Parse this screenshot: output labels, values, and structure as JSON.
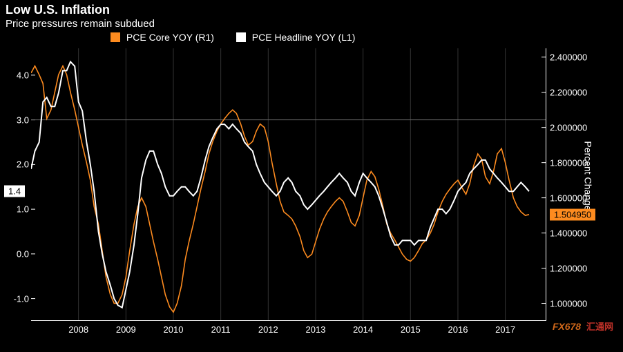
{
  "title": "Low U.S. Inflation",
  "subtitle": "Price pressures remain subdued",
  "legend": {
    "series1": {
      "label": "PCE Core YOY (R1)",
      "color": "#fd8b1f"
    },
    "series2": {
      "label": "PCE Headline YOY (L1)",
      "color": "#ffffff"
    }
  },
  "watermark": {
    "main": "FX678",
    "sub": "汇通网"
  },
  "plot": {
    "background": "#000000",
    "grid_color": "#333333",
    "ref_line_color": "#666666",
    "ref_line_at_left": 3.0,
    "x": {
      "min": 2007.0,
      "max": 2017.85,
      "ticks": [
        2008,
        2009,
        2010,
        2011,
        2012,
        2013,
        2014,
        2015,
        2016,
        2017
      ]
    },
    "left_axis": {
      "min": -1.5,
      "max": 4.6,
      "ticks": [
        -1.0,
        0.0,
        1.0,
        2.0,
        3.0,
        4.0
      ],
      "tick_labels": [
        "-1.0",
        "0.0",
        "1.0",
        "2.0",
        "3.0",
        "4.0"
      ],
      "badge_value": 1.4,
      "badge_label": "1.4"
    },
    "right_axis": {
      "label": "Percent Change",
      "min": 0.9,
      "max": 2.45,
      "ticks": [
        1.0,
        1.2,
        1.4,
        1.6,
        1.8,
        2.0,
        2.2,
        2.4
      ],
      "tick_labels": [
        "1.000000",
        "1.200000",
        "1.400000",
        "1.600000",
        "1.800000",
        "2.000000",
        "2.200000",
        "2.400000"
      ],
      "badge_value": 1.50495,
      "badge_label": "1.504950"
    },
    "series_headline": {
      "axis": "left",
      "color": "#ffffff",
      "line_width": 2.0,
      "data": [
        [
          2007.0,
          1.9
        ],
        [
          2007.08,
          2.3
        ],
        [
          2007.17,
          2.5
        ],
        [
          2007.25,
          3.4
        ],
        [
          2007.33,
          3.5
        ],
        [
          2007.42,
          3.3
        ],
        [
          2007.5,
          3.3
        ],
        [
          2007.58,
          3.6
        ],
        [
          2007.67,
          4.1
        ],
        [
          2007.75,
          4.1
        ],
        [
          2007.83,
          4.3
        ],
        [
          2007.92,
          4.2
        ],
        [
          2008.0,
          3.4
        ],
        [
          2008.08,
          3.2
        ],
        [
          2008.17,
          2.5
        ],
        [
          2008.25,
          2.0
        ],
        [
          2008.33,
          1.4
        ],
        [
          2008.42,
          0.5
        ],
        [
          2008.5,
          0.0
        ],
        [
          2008.58,
          -0.4
        ],
        [
          2008.67,
          -0.7
        ],
        [
          2008.75,
          -1.0
        ],
        [
          2008.83,
          -1.15
        ],
        [
          2008.92,
          -1.2
        ],
        [
          2009.0,
          -0.8
        ],
        [
          2009.08,
          -0.4
        ],
        [
          2009.17,
          0.2
        ],
        [
          2009.25,
          0.9
        ],
        [
          2009.33,
          1.7
        ],
        [
          2009.42,
          2.1
        ],
        [
          2009.5,
          2.3
        ],
        [
          2009.58,
          2.3
        ],
        [
          2009.67,
          2.0
        ],
        [
          2009.75,
          1.8
        ],
        [
          2009.83,
          1.5
        ],
        [
          2009.92,
          1.3
        ],
        [
          2010.0,
          1.3
        ],
        [
          2010.08,
          1.4
        ],
        [
          2010.17,
          1.5
        ],
        [
          2010.25,
          1.5
        ],
        [
          2010.33,
          1.4
        ],
        [
          2010.42,
          1.3
        ],
        [
          2010.5,
          1.4
        ],
        [
          2010.58,
          1.7
        ],
        [
          2010.67,
          2.1
        ],
        [
          2010.75,
          2.4
        ],
        [
          2010.83,
          2.6
        ],
        [
          2010.92,
          2.8
        ],
        [
          2011.0,
          2.9
        ],
        [
          2011.08,
          2.9
        ],
        [
          2011.17,
          2.8
        ],
        [
          2011.25,
          2.9
        ],
        [
          2011.33,
          2.8
        ],
        [
          2011.42,
          2.7
        ],
        [
          2011.5,
          2.5
        ],
        [
          2011.58,
          2.4
        ],
        [
          2011.67,
          2.3
        ],
        [
          2011.75,
          2.0
        ],
        [
          2011.83,
          1.8
        ],
        [
          2011.92,
          1.6
        ],
        [
          2012.0,
          1.5
        ],
        [
          2012.08,
          1.4
        ],
        [
          2012.17,
          1.3
        ],
        [
          2012.25,
          1.4
        ],
        [
          2012.33,
          1.6
        ],
        [
          2012.42,
          1.7
        ],
        [
          2012.5,
          1.6
        ],
        [
          2012.58,
          1.4
        ],
        [
          2012.67,
          1.3
        ],
        [
          2012.75,
          1.1
        ],
        [
          2012.83,
          1.0
        ],
        [
          2012.92,
          1.1
        ],
        [
          2013.0,
          1.2
        ],
        [
          2013.08,
          1.3
        ],
        [
          2013.17,
          1.4
        ],
        [
          2013.25,
          1.5
        ],
        [
          2013.33,
          1.6
        ],
        [
          2013.42,
          1.7
        ],
        [
          2013.5,
          1.8
        ],
        [
          2013.58,
          1.7
        ],
        [
          2013.67,
          1.6
        ],
        [
          2013.75,
          1.4
        ],
        [
          2013.83,
          1.3
        ],
        [
          2013.92,
          1.6
        ],
        [
          2014.0,
          1.8
        ],
        [
          2014.08,
          1.7
        ],
        [
          2014.17,
          1.6
        ],
        [
          2014.25,
          1.5
        ],
        [
          2014.33,
          1.3
        ],
        [
          2014.42,
          1.0
        ],
        [
          2014.5,
          0.7
        ],
        [
          2014.58,
          0.4
        ],
        [
          2014.67,
          0.2
        ],
        [
          2014.75,
          0.2
        ],
        [
          2014.83,
          0.3
        ],
        [
          2014.92,
          0.3
        ],
        [
          2015.0,
          0.3
        ],
        [
          2015.08,
          0.2
        ],
        [
          2015.17,
          0.3
        ],
        [
          2015.25,
          0.3
        ],
        [
          2015.33,
          0.3
        ],
        [
          2015.42,
          0.6
        ],
        [
          2015.5,
          0.8
        ],
        [
          2015.58,
          1.0
        ],
        [
          2015.67,
          1.0
        ],
        [
          2015.75,
          0.9
        ],
        [
          2015.83,
          1.0
        ],
        [
          2015.92,
          1.2
        ],
        [
          2016.0,
          1.4
        ],
        [
          2016.08,
          1.5
        ],
        [
          2016.17,
          1.6
        ],
        [
          2016.25,
          1.8
        ],
        [
          2016.33,
          1.9
        ],
        [
          2016.42,
          2.0
        ],
        [
          2016.5,
          2.1
        ],
        [
          2016.58,
          2.1
        ],
        [
          2016.67,
          1.9
        ],
        [
          2016.75,
          1.8
        ],
        [
          2016.83,
          1.7
        ],
        [
          2016.92,
          1.6
        ],
        [
          2017.0,
          1.5
        ],
        [
          2017.08,
          1.4
        ],
        [
          2017.17,
          1.4
        ],
        [
          2017.25,
          1.5
        ],
        [
          2017.33,
          1.6
        ],
        [
          2017.42,
          1.5
        ],
        [
          2017.5,
          1.4
        ]
      ]
    },
    "series_core": {
      "axis": "right",
      "color": "#fd8b1f",
      "line_width": 1.6,
      "data": [
        [
          2007.0,
          2.31
        ],
        [
          2007.08,
          2.35
        ],
        [
          2007.17,
          2.3
        ],
        [
          2007.25,
          2.25
        ],
        [
          2007.33,
          2.05
        ],
        [
          2007.42,
          2.1
        ],
        [
          2007.5,
          2.2
        ],
        [
          2007.58,
          2.3
        ],
        [
          2007.67,
          2.35
        ],
        [
          2007.75,
          2.3
        ],
        [
          2007.83,
          2.2
        ],
        [
          2007.92,
          2.1
        ],
        [
          2008.0,
          2.0
        ],
        [
          2008.08,
          1.9
        ],
        [
          2008.17,
          1.8
        ],
        [
          2008.25,
          1.7
        ],
        [
          2008.33,
          1.55
        ],
        [
          2008.42,
          1.45
        ],
        [
          2008.5,
          1.3
        ],
        [
          2008.58,
          1.15
        ],
        [
          2008.67,
          1.05
        ],
        [
          2008.75,
          1.0
        ],
        [
          2008.83,
          1.0
        ],
        [
          2008.92,
          1.05
        ],
        [
          2009.0,
          1.15
        ],
        [
          2009.08,
          1.3
        ],
        [
          2009.17,
          1.45
        ],
        [
          2009.25,
          1.55
        ],
        [
          2009.33,
          1.6
        ],
        [
          2009.42,
          1.55
        ],
        [
          2009.5,
          1.45
        ],
        [
          2009.58,
          1.35
        ],
        [
          2009.67,
          1.25
        ],
        [
          2009.75,
          1.15
        ],
        [
          2009.83,
          1.05
        ],
        [
          2009.92,
          0.98
        ],
        [
          2010.0,
          0.95
        ],
        [
          2010.08,
          1.0
        ],
        [
          2010.17,
          1.1
        ],
        [
          2010.25,
          1.25
        ],
        [
          2010.33,
          1.35
        ],
        [
          2010.42,
          1.45
        ],
        [
          2010.5,
          1.55
        ],
        [
          2010.58,
          1.65
        ],
        [
          2010.67,
          1.75
        ],
        [
          2010.75,
          1.85
        ],
        [
          2010.83,
          1.92
        ],
        [
          2010.92,
          1.98
        ],
        [
          2011.0,
          2.02
        ],
        [
          2011.08,
          2.05
        ],
        [
          2011.17,
          2.08
        ],
        [
          2011.25,
          2.1
        ],
        [
          2011.33,
          2.08
        ],
        [
          2011.42,
          2.02
        ],
        [
          2011.5,
          1.95
        ],
        [
          2011.58,
          1.9
        ],
        [
          2011.67,
          1.92
        ],
        [
          2011.75,
          1.98
        ],
        [
          2011.83,
          2.02
        ],
        [
          2011.92,
          2.0
        ],
        [
          2012.0,
          1.92
        ],
        [
          2012.08,
          1.8
        ],
        [
          2012.17,
          1.68
        ],
        [
          2012.25,
          1.58
        ],
        [
          2012.33,
          1.52
        ],
        [
          2012.42,
          1.5
        ],
        [
          2012.5,
          1.48
        ],
        [
          2012.58,
          1.44
        ],
        [
          2012.67,
          1.38
        ],
        [
          2012.75,
          1.3
        ],
        [
          2012.83,
          1.26
        ],
        [
          2012.92,
          1.28
        ],
        [
          2013.0,
          1.35
        ],
        [
          2013.08,
          1.42
        ],
        [
          2013.17,
          1.48
        ],
        [
          2013.25,
          1.52
        ],
        [
          2013.33,
          1.55
        ],
        [
          2013.42,
          1.58
        ],
        [
          2013.5,
          1.6
        ],
        [
          2013.58,
          1.58
        ],
        [
          2013.67,
          1.52
        ],
        [
          2013.75,
          1.46
        ],
        [
          2013.83,
          1.44
        ],
        [
          2013.92,
          1.5
        ],
        [
          2014.0,
          1.6
        ],
        [
          2014.08,
          1.7
        ],
        [
          2014.17,
          1.75
        ],
        [
          2014.25,
          1.72
        ],
        [
          2014.33,
          1.65
        ],
        [
          2014.42,
          1.55
        ],
        [
          2014.5,
          1.45
        ],
        [
          2014.58,
          1.4
        ],
        [
          2014.67,
          1.36
        ],
        [
          2014.75,
          1.32
        ],
        [
          2014.83,
          1.28
        ],
        [
          2014.92,
          1.25
        ],
        [
          2015.0,
          1.24
        ],
        [
          2015.08,
          1.26
        ],
        [
          2015.17,
          1.3
        ],
        [
          2015.25,
          1.34
        ],
        [
          2015.33,
          1.36
        ],
        [
          2015.42,
          1.4
        ],
        [
          2015.5,
          1.45
        ],
        [
          2015.58,
          1.52
        ],
        [
          2015.67,
          1.58
        ],
        [
          2015.75,
          1.62
        ],
        [
          2015.83,
          1.65
        ],
        [
          2015.92,
          1.68
        ],
        [
          2016.0,
          1.7
        ],
        [
          2016.08,
          1.66
        ],
        [
          2016.17,
          1.62
        ],
        [
          2016.25,
          1.68
        ],
        [
          2016.33,
          1.78
        ],
        [
          2016.42,
          1.85
        ],
        [
          2016.5,
          1.82
        ],
        [
          2016.58,
          1.72
        ],
        [
          2016.67,
          1.68
        ],
        [
          2016.75,
          1.75
        ],
        [
          2016.83,
          1.85
        ],
        [
          2016.92,
          1.88
        ],
        [
          2017.0,
          1.8
        ],
        [
          2017.08,
          1.7
        ],
        [
          2017.17,
          1.6
        ],
        [
          2017.25,
          1.55
        ],
        [
          2017.33,
          1.52
        ],
        [
          2017.42,
          1.5
        ],
        [
          2017.5,
          1.505
        ]
      ]
    }
  }
}
